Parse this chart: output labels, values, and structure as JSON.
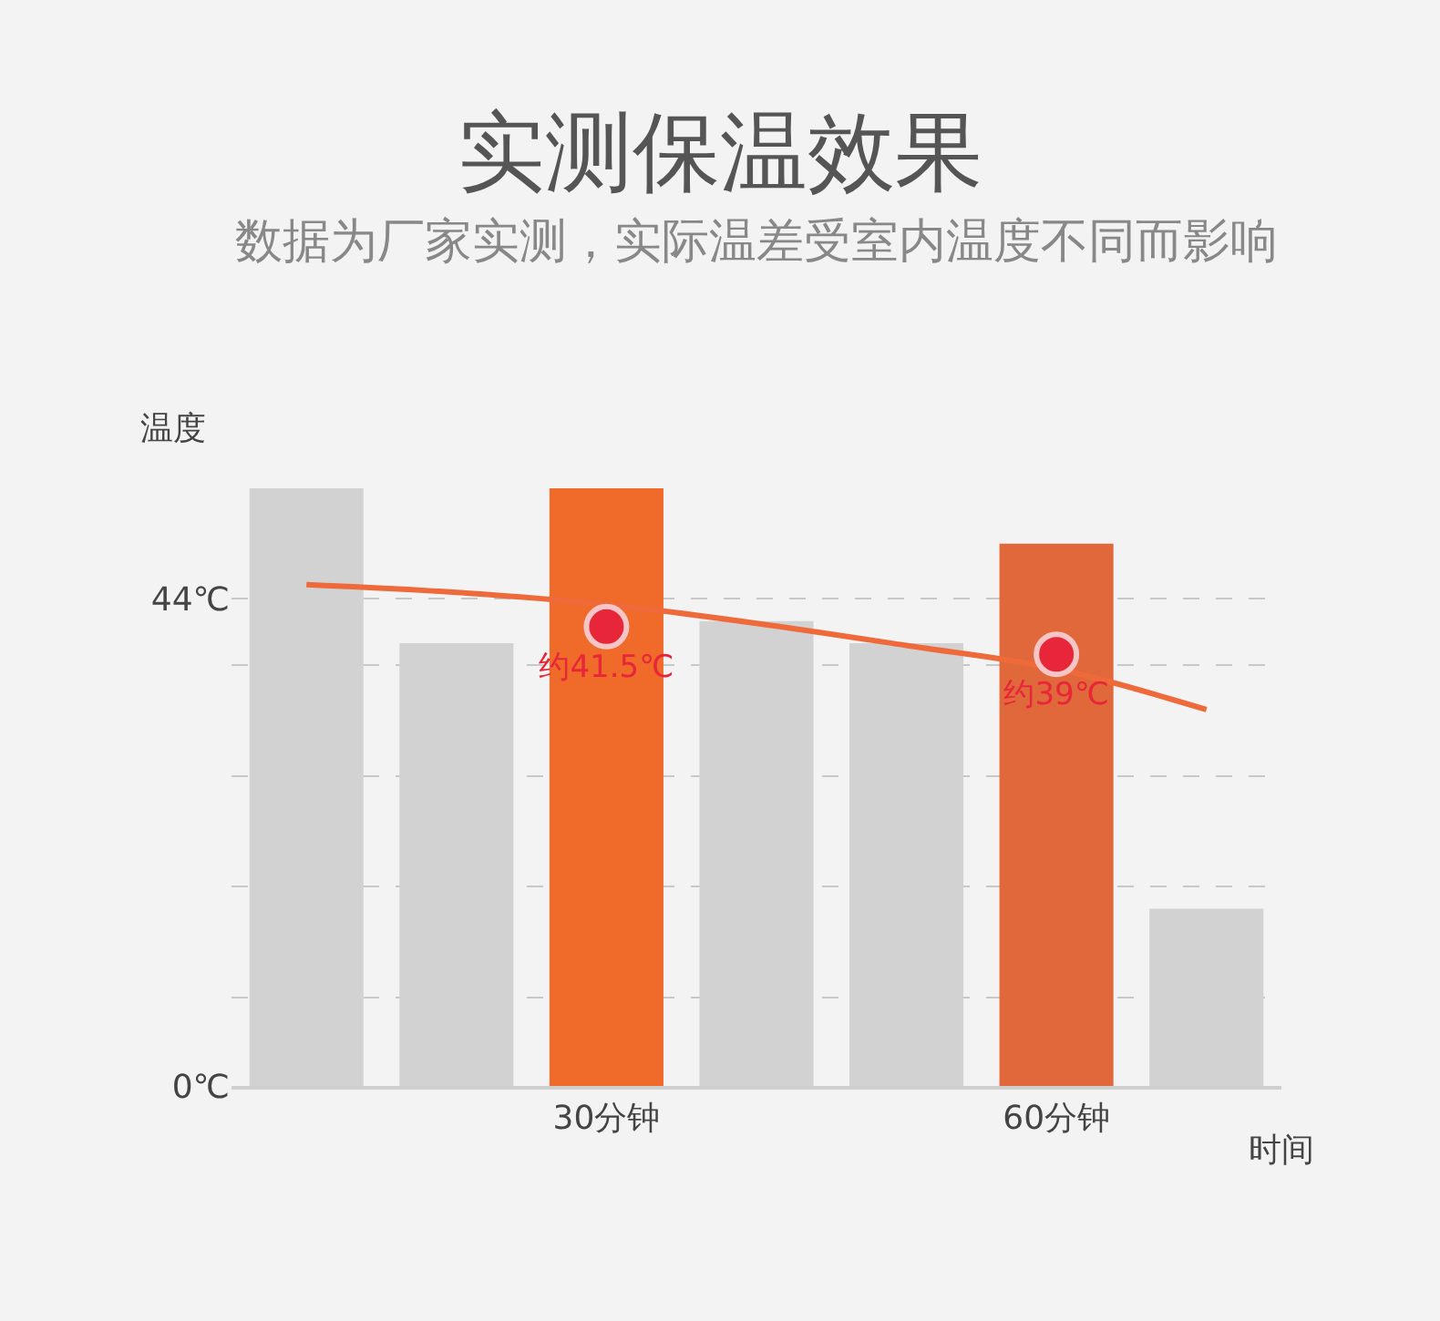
{
  "chart_data": {
    "type": "bar",
    "title": "实测保温效果",
    "subtitle": "数据为厂家实测，实际温差受室内温度不同而影响",
    "ylabel": "温度",
    "xlabel": "时间",
    "categories": [
      null,
      null,
      "30分钟",
      null,
      null,
      "60分钟",
      null
    ],
    "ylim": [
      0,
      54
    ],
    "yticks": [
      {
        "value": 0,
        "label": "0℃"
      },
      {
        "value": 8,
        "label": null
      },
      {
        "value": 18,
        "label": null
      },
      {
        "value": 28,
        "label": null
      },
      {
        "value": 38,
        "label": null
      },
      {
        "value": 44,
        "label": "44℃"
      }
    ],
    "grid": "y",
    "series": [
      {
        "values": [
          54,
          40,
          54,
          42,
          40,
          49,
          16
        ],
        "colors": [
          "#d2d2d2",
          "#d2d2d2",
          "#f06a2a",
          "#d2d2d2",
          "#d2d2d2",
          "#e0683a",
          "#d2d2d2"
        ]
      },
      {
        "type": "line",
        "values": [
          45.3,
          44.6,
          43.5,
          41.8,
          39.8,
          37.7,
          34.0
        ],
        "color": "#ef6a3a",
        "marker": "none",
        "line_style": "solid"
      },
      {
        "type": "scatter",
        "values": [
          null,
          null,
          41.5,
          null,
          null,
          39,
          null
        ],
        "color": "#e8263a",
        "marker": "circle",
        "value_labels": [
          null,
          null,
          "约41.5℃",
          null,
          null,
          "约39℃",
          null
        ]
      }
    ]
  }
}
